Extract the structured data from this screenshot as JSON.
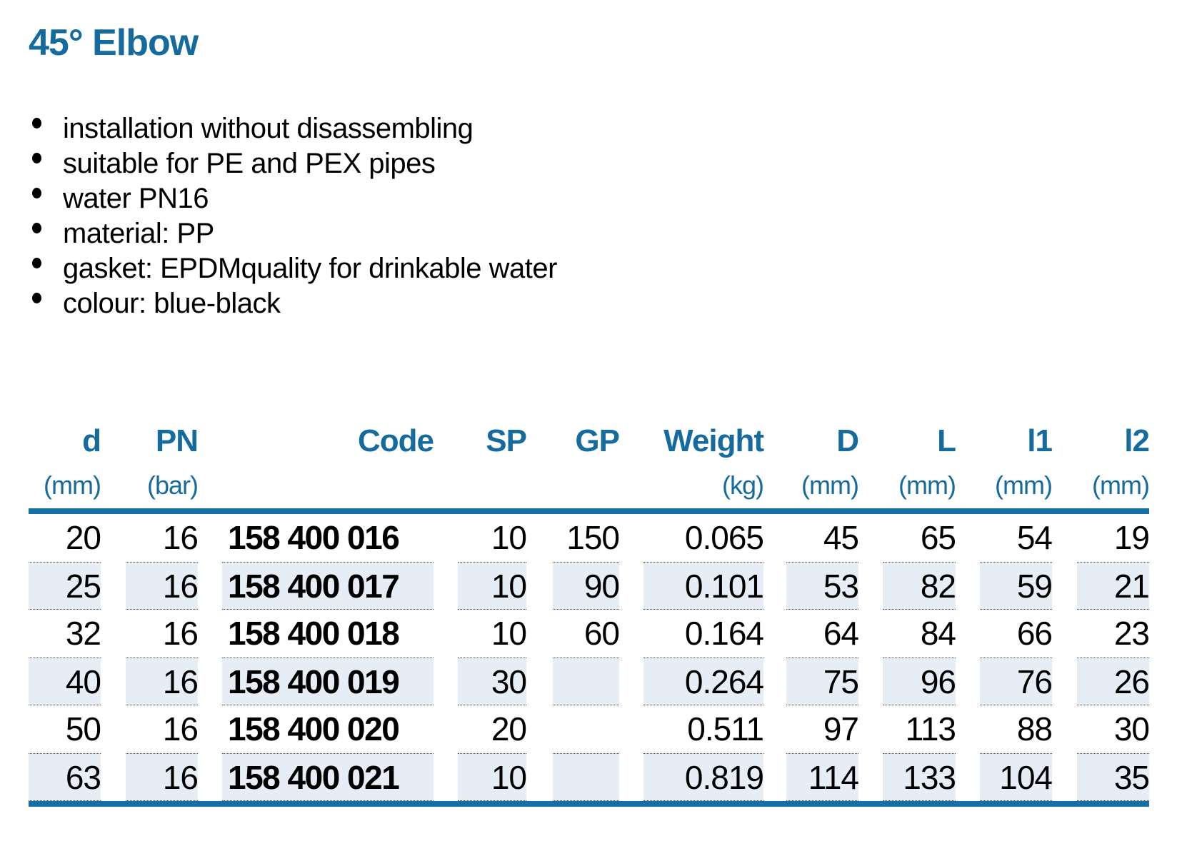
{
  "colors": {
    "accent": "#166b9e",
    "line": "#1470a4",
    "shade": "#e6edf4"
  },
  "page": {
    "title": "45° Elbow"
  },
  "features": [
    "installation without disassembling",
    "suitable for PE and PEX pipes",
    "water PN16",
    "material: PP",
    "gasket: EPDMquality for drinkable water",
    "colour: blue-black"
  ],
  "table": {
    "columns": [
      {
        "label": "d",
        "unit": "(mm)"
      },
      {
        "label": "PN",
        "unit": "(bar)"
      },
      {
        "label": "Code",
        "unit": ""
      },
      {
        "label": "SP",
        "unit": ""
      },
      {
        "label": "GP",
        "unit": ""
      },
      {
        "label": "Weight",
        "unit": "(kg)"
      },
      {
        "label": "D",
        "unit": "(mm)"
      },
      {
        "label": "L",
        "unit": "(mm)"
      },
      {
        "label": "l1",
        "unit": "(mm)"
      },
      {
        "label": "l2",
        "unit": "(mm)"
      }
    ],
    "rows": [
      {
        "d": "20",
        "pn": "16",
        "code": "158 400 016",
        "sp": "10",
        "gp": "150",
        "weight": "0.065",
        "D": "45",
        "L": "65",
        "l1": "54",
        "l2": "19"
      },
      {
        "d": "25",
        "pn": "16",
        "code": "158 400 017",
        "sp": "10",
        "gp": "90",
        "weight": "0.101",
        "D": "53",
        "L": "82",
        "l1": "59",
        "l2": "21"
      },
      {
        "d": "32",
        "pn": "16",
        "code": "158 400 018",
        "sp": "10",
        "gp": "60",
        "weight": "0.164",
        "D": "64",
        "L": "84",
        "l1": "66",
        "l2": "23"
      },
      {
        "d": "40",
        "pn": "16",
        "code": "158 400 019",
        "sp": "30",
        "gp": "",
        "weight": "0.264",
        "D": "75",
        "L": "96",
        "l1": "76",
        "l2": "26"
      },
      {
        "d": "50",
        "pn": "16",
        "code": "158 400 020",
        "sp": "20",
        "gp": "",
        "weight": "0.511",
        "D": "97",
        "L": "113",
        "l1": "88",
        "l2": "30"
      },
      {
        "d": "63",
        "pn": "16",
        "code": "158 400 021",
        "sp": "10",
        "gp": "",
        "weight": "0.819",
        "D": "114",
        "L": "133",
        "l1": "104",
        "l2": "35"
      }
    ]
  }
}
